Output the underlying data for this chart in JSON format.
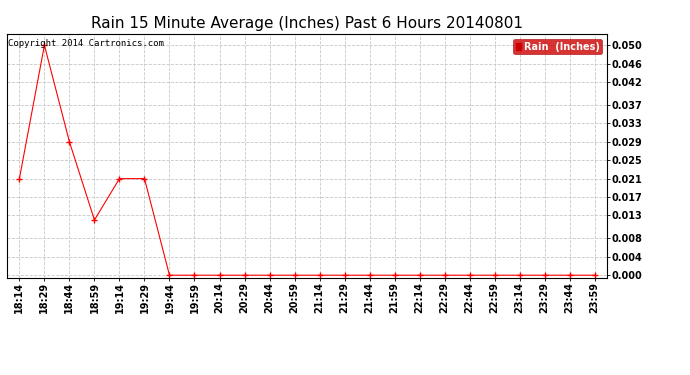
{
  "title": "Rain 15 Minute Average (Inches) Past 6 Hours 20140801",
  "copyright": "Copyright 2014 Cartronics.com",
  "legend_label": "Rain  (Inches)",
  "x_labels": [
    "18:14",
    "18:29",
    "18:44",
    "18:59",
    "19:14",
    "19:29",
    "19:44",
    "19:59",
    "20:14",
    "20:29",
    "20:44",
    "20:59",
    "21:14",
    "21:29",
    "21:44",
    "21:59",
    "22:14",
    "22:29",
    "22:44",
    "22:59",
    "23:14",
    "23:29",
    "23:44",
    "23:59"
  ],
  "y_values": [
    0.021,
    0.05,
    0.029,
    0.012,
    0.021,
    0.021,
    0.0,
    0.0,
    0.0,
    0.0,
    0.0,
    0.0,
    0.0,
    0.0,
    0.0,
    0.0,
    0.0,
    0.0,
    0.0,
    0.0,
    0.0,
    0.0,
    0.0,
    0.0
  ],
  "y_ticks": [
    0.0,
    0.004,
    0.008,
    0.013,
    0.017,
    0.021,
    0.025,
    0.029,
    0.033,
    0.037,
    0.042,
    0.046,
    0.05
  ],
  "y_tick_labels": [
    "0.000",
    "0.004",
    "0.008",
    "0.013",
    "0.017",
    "0.021",
    "0.025",
    "0.029",
    "0.033",
    "0.037",
    "0.042",
    "0.046",
    "0.050"
  ],
  "ylim": [
    -0.0005,
    0.0525
  ],
  "line_color": "#ff0000",
  "marker": "+",
  "marker_size": 4,
  "marker_edge_width": 1.0,
  "background_color": "#ffffff",
  "grid_color": "#c8c8c8",
  "title_fontsize": 11,
  "tick_fontsize": 7,
  "legend_bg": "#cc0000",
  "legend_text_color": "#ffffff",
  "copyright_fontsize": 6.5
}
